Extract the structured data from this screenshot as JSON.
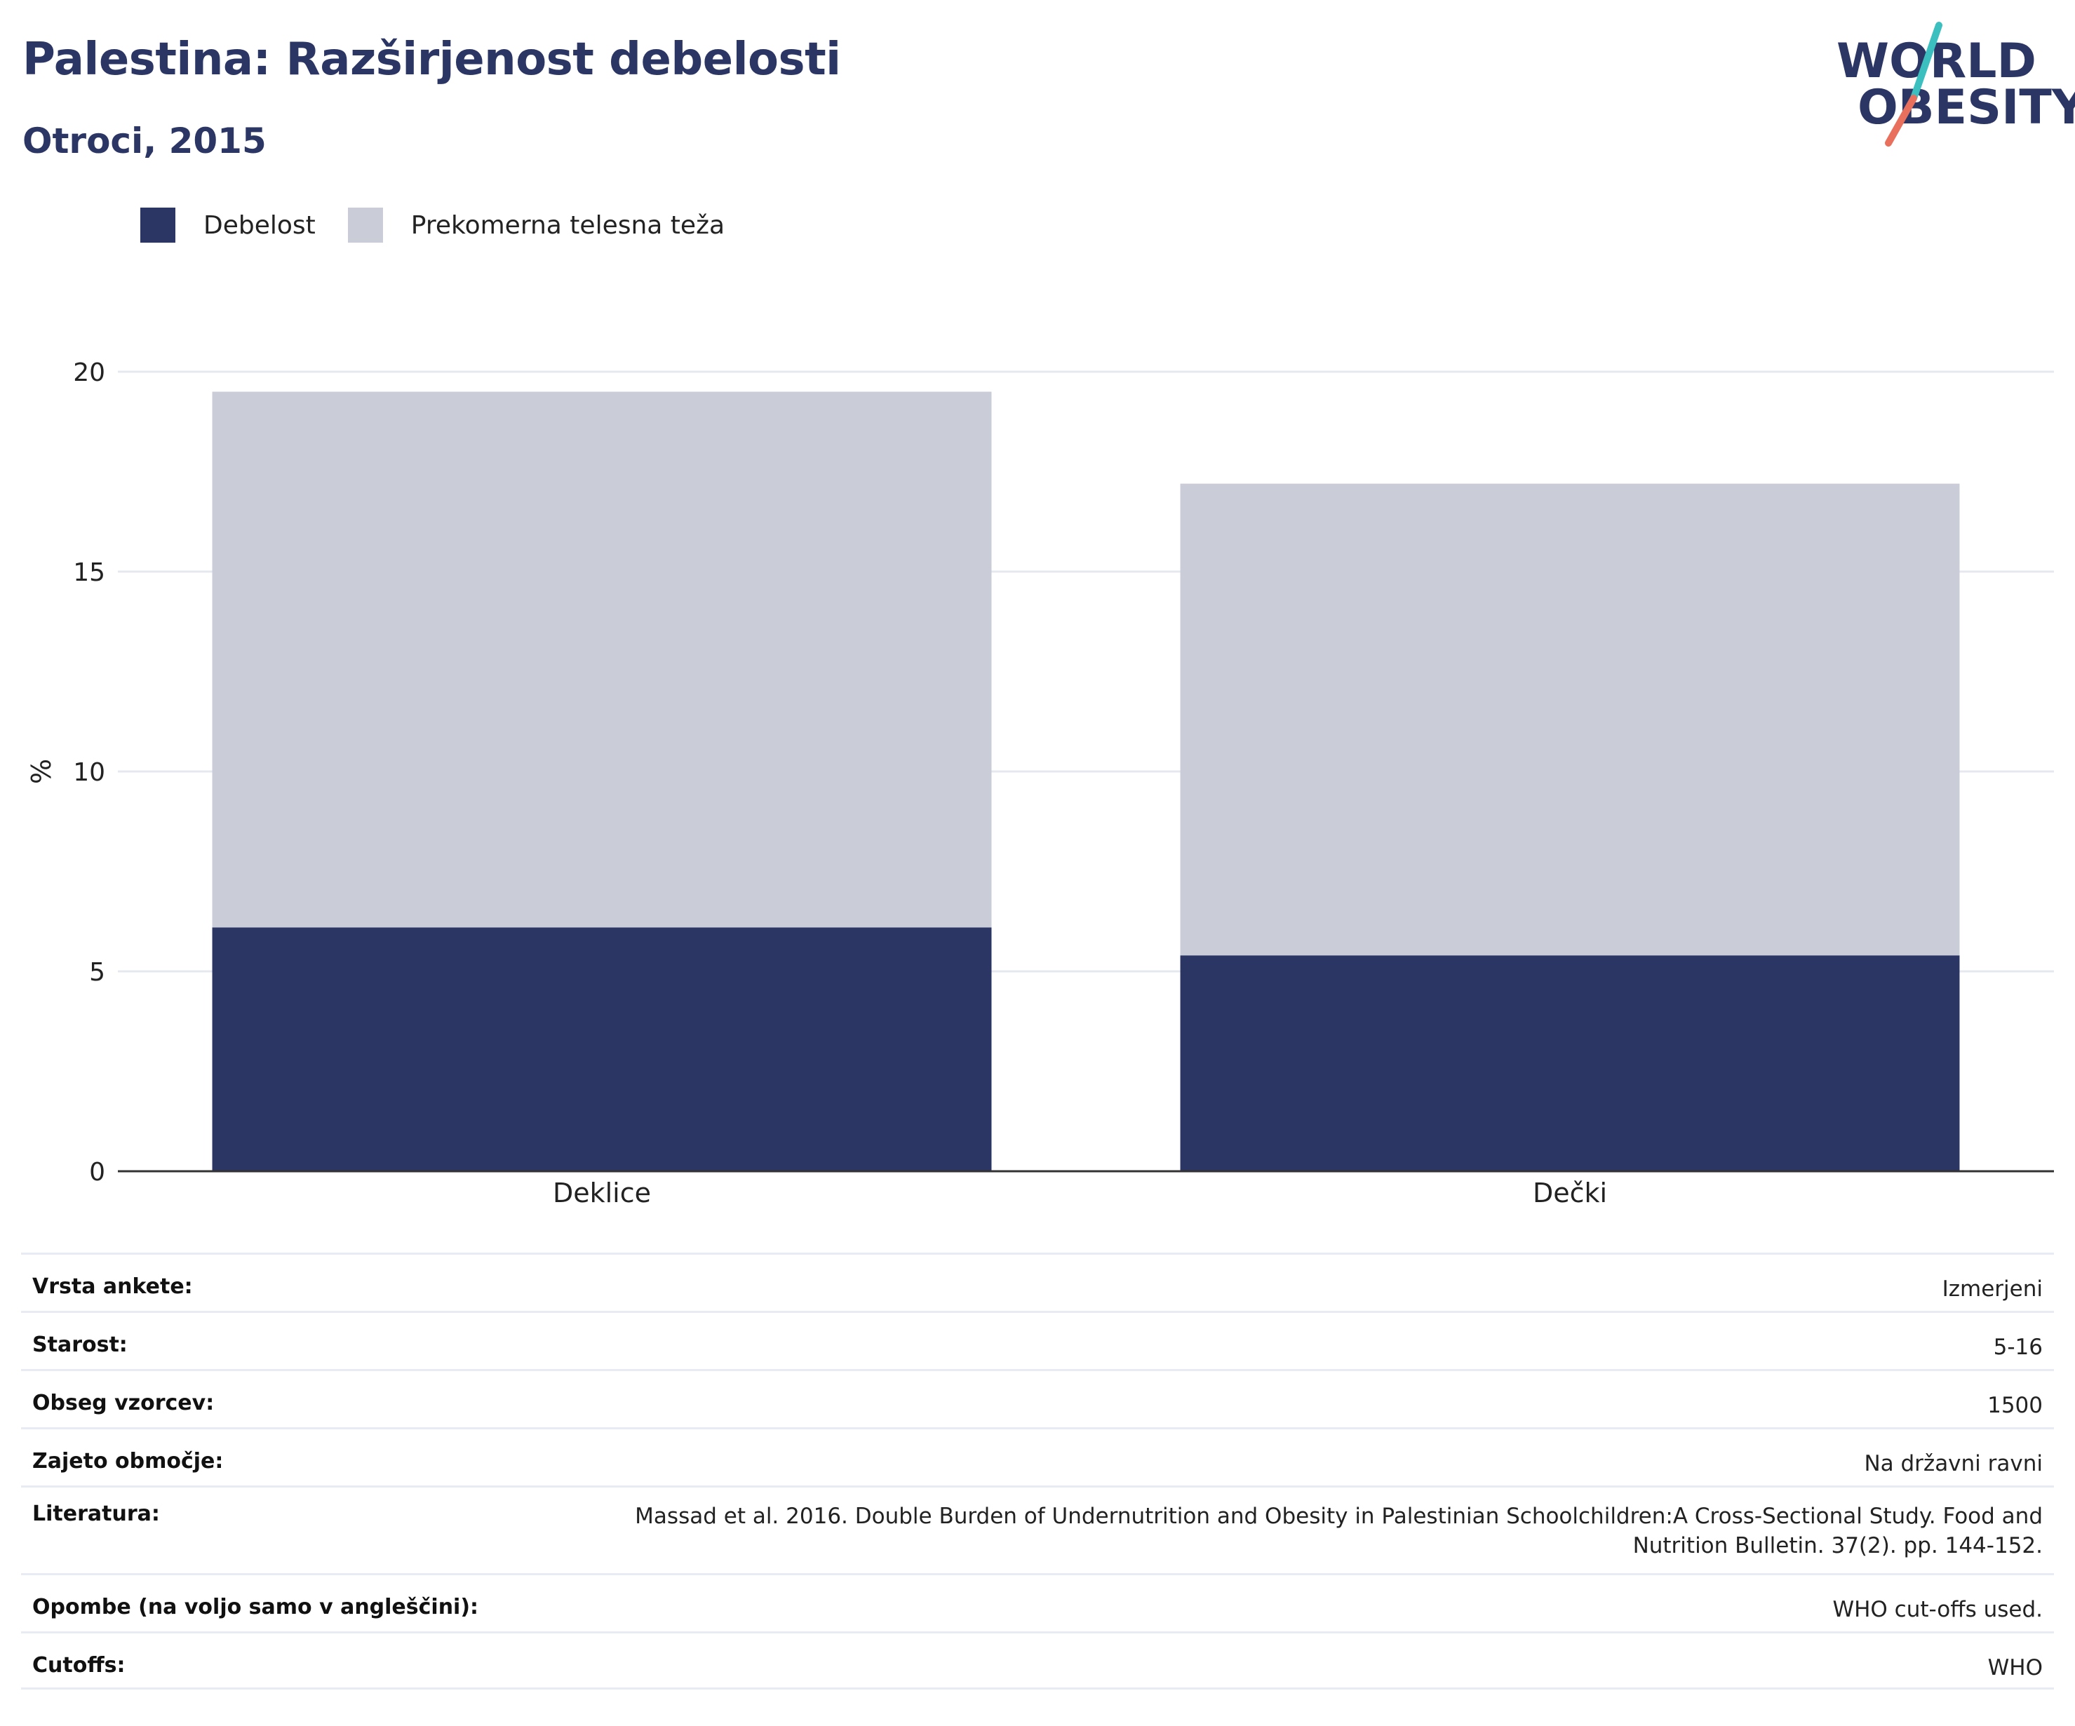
{
  "header": {
    "title": "Palestina: Razširjenost debelosti",
    "subtitle": "Otroci, 2015"
  },
  "logo": {
    "line1": "WORLD",
    "line2": "OBESITY",
    "colors": {
      "text": "#2b3664",
      "slash_top": "#3bbfbf",
      "slash_bottom": "#e8705d"
    }
  },
  "colors": {
    "obesity": "#2b3664",
    "overweight": "#cacdd8",
    "gridline": "#e6e8ef",
    "axis": "#333333"
  },
  "chart_data": {
    "type": "bar",
    "stacked": true,
    "categories": [
      "Deklice",
      "Dečki"
    ],
    "series": [
      {
        "name": "Debelost",
        "values": [
          6.1,
          5.4
        ],
        "color": "#2b3664"
      },
      {
        "name": "Prekomerna telesna teža",
        "values": [
          13.4,
          11.8
        ],
        "color": "#cacdd8"
      }
    ],
    "ylabel": "%",
    "ylim": [
      0,
      20
    ],
    "yticks": [
      0,
      5,
      10,
      15,
      20
    ],
    "grid": true,
    "legend_position": "top-left"
  },
  "info": [
    {
      "key": "Vrsta ankete:",
      "value": "Izmerjeni"
    },
    {
      "key": "Starost:",
      "value": "5-16"
    },
    {
      "key": "Obseg vzorcev:",
      "value": "1500"
    },
    {
      "key": "Zajeto območje:",
      "value": "Na državni ravni"
    },
    {
      "key": "Literatura:",
      "value": "Massad et al. 2016. Double Burden of Undernutrition and Obesity in Palestinian Schoolchildren:A Cross-Sectional Study. Food and Nutrition Bulletin. 37(2). pp. 144-152."
    },
    {
      "key": "Opombe (na voljo samo v angleščini):",
      "value": "WHO cut-offs used."
    },
    {
      "key": "Cutoffs:",
      "value": "WHO"
    }
  ]
}
